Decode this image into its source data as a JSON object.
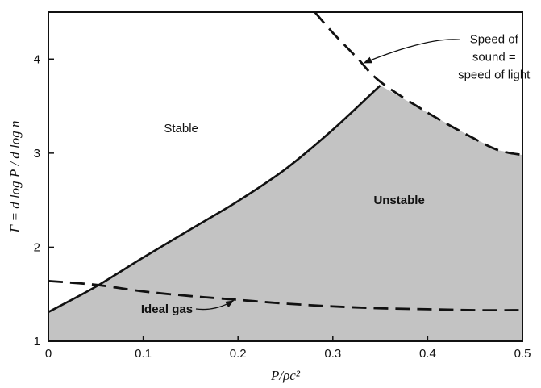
{
  "chart_data": {
    "type": "line",
    "xlabel": "P/ρc²",
    "ylabel": "Γ = d log P / d log n",
    "xlim": [
      0,
      0.5
    ],
    "ylim": [
      1,
      4.5
    ],
    "x_ticks": [
      "0",
      "0.1",
      "0.2",
      "0.3",
      "0.4",
      "0.5"
    ],
    "x_tick_values": [
      0,
      0.1,
      0.2,
      0.3,
      0.4,
      0.5
    ],
    "y_ticks": [
      "1",
      "2",
      "3",
      "4"
    ],
    "y_tick_values": [
      1,
      2,
      3,
      4
    ],
    "grid": false,
    "series": [
      {
        "style": "solid",
        "points": [
          [
            0,
            1.31
          ],
          [
            0.05,
            1.58
          ],
          [
            0.1,
            1.89
          ],
          [
            0.15,
            2.19
          ],
          [
            0.2,
            2.49
          ],
          [
            0.25,
            2.83
          ],
          [
            0.3,
            3.25
          ],
          [
            0.35,
            3.72
          ]
        ]
      },
      {
        "style": "dashed",
        "points": [
          [
            0,
            1.64
          ],
          [
            0.05,
            1.6
          ],
          [
            0.1,
            1.53
          ],
          [
            0.15,
            1.48
          ],
          [
            0.2,
            1.44
          ],
          [
            0.25,
            1.4
          ],
          [
            0.3,
            1.37
          ],
          [
            0.35,
            1.35
          ],
          [
            0.4,
            1.34
          ],
          [
            0.45,
            1.33
          ],
          [
            0.5,
            1.33
          ]
        ]
      },
      {
        "style": "dashed",
        "points": [
          [
            0.281,
            4.5
          ],
          [
            0.3,
            4.28
          ],
          [
            0.325,
            4.02
          ],
          [
            0.35,
            3.76
          ],
          [
            0.4,
            3.43
          ],
          [
            0.45,
            3.15
          ],
          [
            0.475,
            3.03
          ],
          [
            0.5,
            2.98
          ]
        ]
      }
    ],
    "regions": [
      {
        "label": "Stable",
        "x": 0.14,
        "y": 3.22
      },
      {
        "label": "Unstable",
        "x": 0.37,
        "y": 2.46
      }
    ],
    "annotations": [
      {
        "lines": [
          "Speed of",
          "sound =",
          "speed of light"
        ],
        "text_x": 0.47,
        "text_y": 4.0,
        "arrow_to": [
          0.333,
          3.96
        ]
      },
      {
        "lines": [
          "Ideal gas"
        ],
        "text_x": 0.125,
        "text_y": 1.3,
        "arrow_to": [
          0.195,
          1.43
        ]
      }
    ]
  },
  "colors": {
    "unstable_fill": "#c3c3c3",
    "line": "#111111"
  }
}
